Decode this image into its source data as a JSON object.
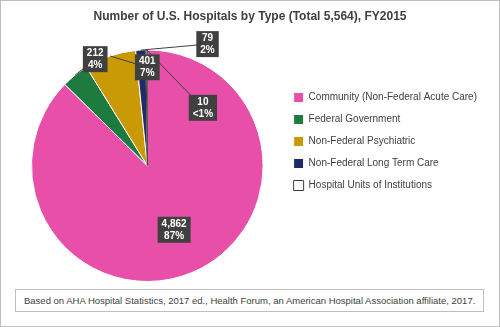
{
  "chart_data": {
    "type": "pie",
    "title": "Number of U.S. Hospitals by Type (Total 5,564), FY2015",
    "categories": [
      "Community (Non-Federal Acute Care)",
      "Federal Government",
      "Non-Federal Psychiatric",
      "Non-Federal Long Term Care",
      "Hospital Units of Institutions"
    ],
    "values": [
      4862,
      212,
      401,
      79,
      10
    ],
    "value_labels": [
      "4,862",
      "212",
      "401",
      "79",
      "10"
    ],
    "percents": [
      87,
      4,
      7,
      2,
      0.18
    ],
    "percent_labels": [
      "87%",
      "4%",
      "7%",
      "2%",
      "<1%"
    ],
    "colors": [
      "#e84fa8",
      "#1e7b3f",
      "#c99a06",
      "#1f2a66",
      "#ffffff"
    ],
    "legend": "right",
    "data_labels": true,
    "footnote": "Based on AHA Hospital Statistics, 2017 ed., Health Forum, an American Hospital Association affiliate, 2017."
  }
}
